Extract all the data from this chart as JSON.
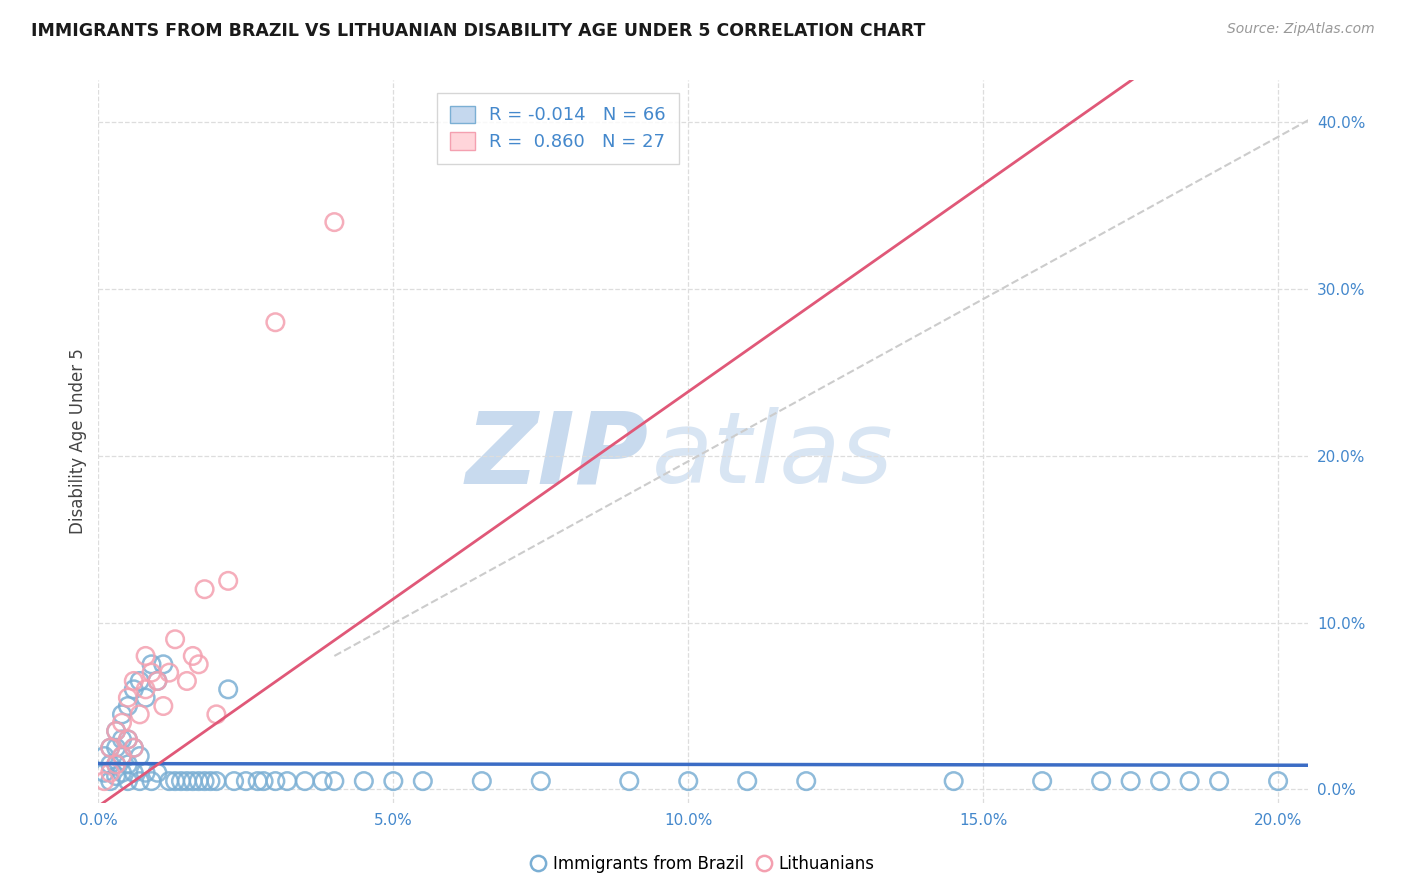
{
  "title": "IMMIGRANTS FROM BRAZIL VS LITHUANIAN DISABILITY AGE UNDER 5 CORRELATION CHART",
  "source": "Source: ZipAtlas.com",
  "ylabel": "Disability Age Under 5",
  "xlim": [
    0.0,
    0.205
  ],
  "ylim": [
    -0.008,
    0.425
  ],
  "xticks": [
    0.0,
    0.05,
    0.1,
    0.15,
    0.2
  ],
  "xtick_labels": [
    "0.0%",
    "5.0%",
    "10.0%",
    "15.0%",
    "20.0%"
  ],
  "ytick_vals": [
    0.0,
    0.1,
    0.2,
    0.3,
    0.4
  ],
  "ytick_labels": [
    "0.0%",
    "10.0%",
    "20.0%",
    "30.0%",
    "40.0%"
  ],
  "blue_edge": "#7BAFD4",
  "pink_edge": "#F4A0B0",
  "blue_line": "#3B6CC5",
  "pink_line": "#E05878",
  "diag_color": "#CCCCCC",
  "tick_color": "#4488CC",
  "grid_color": "#DDDDDD",
  "blue_x": [
    0.001,
    0.001,
    0.002,
    0.002,
    0.002,
    0.003,
    0.003,
    0.003,
    0.003,
    0.004,
    0.004,
    0.004,
    0.004,
    0.005,
    0.005,
    0.005,
    0.005,
    0.006,
    0.006,
    0.006,
    0.007,
    0.007,
    0.007,
    0.008,
    0.008,
    0.009,
    0.009,
    0.01,
    0.01,
    0.011,
    0.012,
    0.013,
    0.014,
    0.015,
    0.016,
    0.017,
    0.018,
    0.019,
    0.02,
    0.022,
    0.023,
    0.025,
    0.027,
    0.028,
    0.03,
    0.032,
    0.035,
    0.038,
    0.04,
    0.045,
    0.05,
    0.055,
    0.065,
    0.075,
    0.09,
    0.1,
    0.11,
    0.12,
    0.145,
    0.16,
    0.17,
    0.175,
    0.18,
    0.185,
    0.19,
    0.2
  ],
  "blue_y": [
    0.01,
    0.02,
    0.005,
    0.015,
    0.025,
    0.008,
    0.015,
    0.025,
    0.035,
    0.01,
    0.02,
    0.03,
    0.045,
    0.005,
    0.015,
    0.03,
    0.05,
    0.01,
    0.025,
    0.06,
    0.005,
    0.02,
    0.065,
    0.01,
    0.055,
    0.005,
    0.075,
    0.01,
    0.065,
    0.075,
    0.005,
    0.005,
    0.005,
    0.005,
    0.005,
    0.005,
    0.005,
    0.005,
    0.005,
    0.06,
    0.005,
    0.005,
    0.005,
    0.005,
    0.005,
    0.005,
    0.005,
    0.005,
    0.005,
    0.005,
    0.005,
    0.005,
    0.005,
    0.005,
    0.005,
    0.005,
    0.005,
    0.005,
    0.005,
    0.005,
    0.005,
    0.005,
    0.005,
    0.005,
    0.005,
    0.005
  ],
  "pink_x": [
    0.001,
    0.002,
    0.002,
    0.003,
    0.003,
    0.004,
    0.004,
    0.005,
    0.005,
    0.006,
    0.006,
    0.007,
    0.008,
    0.008,
    0.009,
    0.01,
    0.011,
    0.012,
    0.013,
    0.015,
    0.016,
    0.017,
    0.018,
    0.02,
    0.022,
    0.03,
    0.04
  ],
  "pink_y": [
    0.005,
    0.01,
    0.025,
    0.015,
    0.035,
    0.02,
    0.04,
    0.03,
    0.055,
    0.025,
    0.065,
    0.045,
    0.06,
    0.08,
    0.07,
    0.065,
    0.05,
    0.07,
    0.09,
    0.065,
    0.08,
    0.075,
    0.12,
    0.045,
    0.125,
    0.28,
    0.34
  ],
  "pink_line_x0": 0.0,
  "pink_line_y0": -0.01,
  "pink_line_x1": 0.155,
  "pink_line_y1": 0.375,
  "blue_line_y": 0.015
}
